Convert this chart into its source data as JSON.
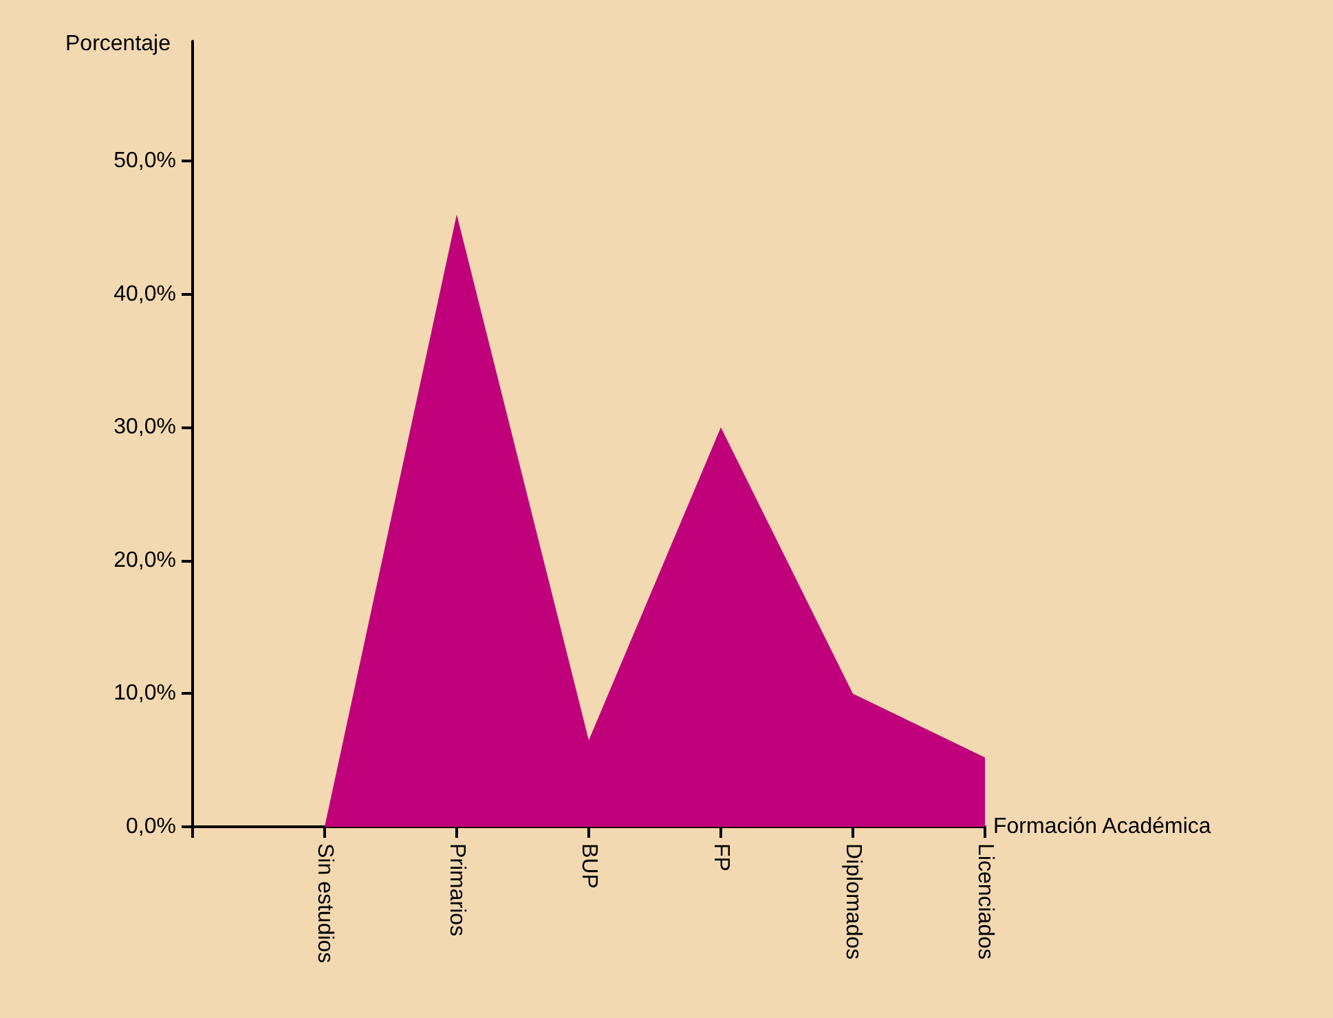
{
  "chart_data": {
    "type": "area",
    "xlabel": "Formación Académica",
    "ylabel": "Porcentaje",
    "categories": [
      null,
      "Sin estudios",
      "Primarios",
      "BUP",
      "FP",
      "Diplomados",
      "Licenciados"
    ],
    "series": [
      {
        "color": "#c0007a",
        "values": [
          null,
          0,
          46,
          6.5,
          30,
          10,
          5.2
        ]
      }
    ],
    "ylim": [
      0,
      59
    ],
    "yticks": [
      {
        "value": 0,
        "label": "0,0%"
      },
      {
        "value": 10,
        "label": "10,0%"
      },
      {
        "value": 20,
        "label": "20,0%"
      },
      {
        "value": 30,
        "label": "30,0%"
      },
      {
        "value": 40,
        "label": "40,0%"
      },
      {
        "value": 50,
        "label": "50,0%"
      }
    ],
    "marker": "none"
  }
}
